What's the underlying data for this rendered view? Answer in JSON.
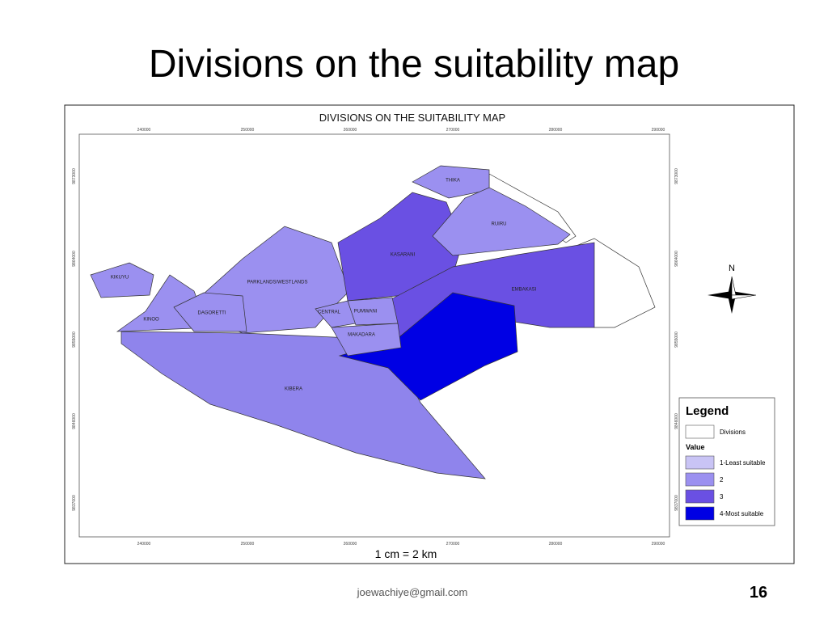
{
  "header": {
    "title": "Divisions on the suitability map"
  },
  "map": {
    "title": "DIVISIONS ON THE SUITABILITY MAP",
    "x_ticks": [
      "240000",
      "250000",
      "260000",
      "270000",
      "280000",
      "290000"
    ],
    "y_ticks": [
      "9873000",
      "9864000",
      "9855000",
      "9846000",
      "9837000"
    ],
    "divisions": [
      "THIKA",
      "RUIRU",
      "KASARANI",
      "EMBAKASI",
      "PARKLANDS/WESTLANDS",
      "KIKUYU",
      "DAGORETTI",
      "CENTRAL",
      "PUMWANI",
      "MAKADARA",
      "KINOO",
      "KIBERA"
    ],
    "north": "N",
    "scale": "1 cm = 2 km",
    "legend": {
      "title": "Legend",
      "boundary": "Divisions",
      "value_title": "Value",
      "items": [
        {
          "label": "1-Least suitable",
          "color": "#c9c4f5"
        },
        {
          "label": "2",
          "color": "#9b90f0"
        },
        {
          "label": "3",
          "color": "#6a50e3"
        },
        {
          "label": "4-Most suitable",
          "color": "#0000e4"
        }
      ]
    }
  },
  "footer": {
    "email": "joewachiye@gmail.com",
    "page": "16"
  }
}
